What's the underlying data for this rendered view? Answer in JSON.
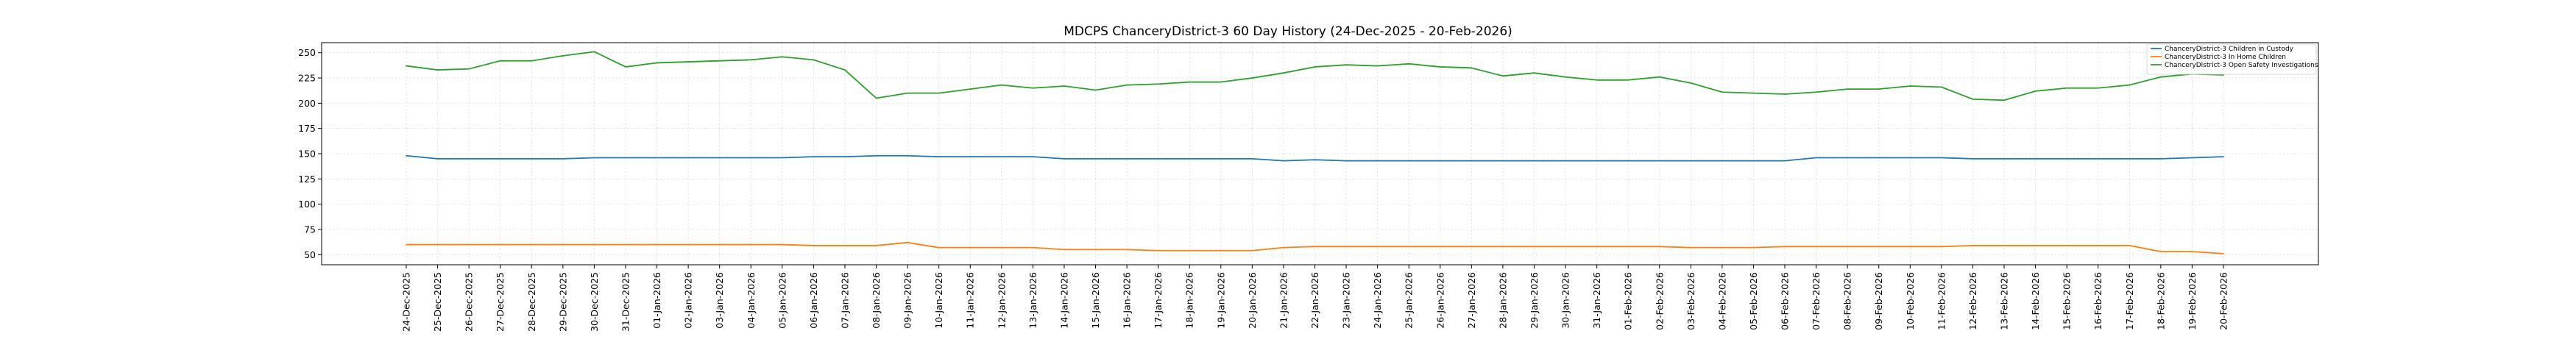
{
  "chart_data": {
    "type": "line",
    "title": "MDCPS ChanceryDistrict-3 60 Day History (24-Dec-2025 - 20-Feb-2026)",
    "xlabel": "",
    "ylabel": "",
    "ylim": [
      40,
      260
    ],
    "yticks": [
      50,
      75,
      100,
      125,
      150,
      175,
      200,
      225,
      250
    ],
    "grid": true,
    "legend_position": "top-right",
    "x": [
      "24-Dec-2025",
      "25-Dec-2025",
      "26-Dec-2025",
      "27-Dec-2025",
      "28-Dec-2025",
      "29-Dec-2025",
      "30-Dec-2025",
      "31-Dec-2025",
      "01-Jan-2026",
      "02-Jan-2026",
      "03-Jan-2026",
      "04-Jan-2026",
      "05-Jan-2026",
      "06-Jan-2026",
      "07-Jan-2026",
      "08-Jan-2026",
      "09-Jan-2026",
      "10-Jan-2026",
      "11-Jan-2026",
      "12-Jan-2026",
      "13-Jan-2026",
      "14-Jan-2026",
      "15-Jan-2026",
      "16-Jan-2026",
      "17-Jan-2026",
      "18-Jan-2026",
      "19-Jan-2026",
      "20-Jan-2026",
      "21-Jan-2026",
      "22-Jan-2026",
      "23-Jan-2026",
      "24-Jan-2026",
      "25-Jan-2026",
      "26-Jan-2026",
      "27-Jan-2026",
      "28-Jan-2026",
      "29-Jan-2026",
      "30-Jan-2026",
      "31-Jan-2026",
      "01-Feb-2026",
      "02-Feb-2026",
      "03-Feb-2026",
      "04-Feb-2026",
      "05-Feb-2026",
      "06-Feb-2026",
      "07-Feb-2026",
      "08-Feb-2026",
      "09-Feb-2026",
      "10-Feb-2026",
      "11-Feb-2026",
      "12-Feb-2026",
      "13-Feb-2026",
      "14-Feb-2026",
      "15-Feb-2026",
      "16-Feb-2026",
      "17-Feb-2026",
      "18-Feb-2026",
      "19-Feb-2026",
      "20-Feb-2026"
    ],
    "series": [
      {
        "name": "ChanceryDistrict-3 Children in Custody",
        "color": "#1f77b4",
        "values": [
          148,
          145,
          145,
          145,
          145,
          145,
          146,
          146,
          146,
          146,
          146,
          146,
          146,
          147,
          147,
          148,
          148,
          147,
          147,
          147,
          147,
          145,
          145,
          145,
          145,
          145,
          145,
          145,
          143,
          144,
          143,
          143,
          143,
          143,
          143,
          143,
          143,
          143,
          143,
          143,
          143,
          143,
          143,
          143,
          143,
          146,
          146,
          146,
          146,
          146,
          145,
          145,
          145,
          145,
          145,
          145,
          145,
          146,
          147
        ]
      },
      {
        "name": "ChanceryDistrict-3 In Home Children",
        "color": "#ff7f0e",
        "values": [
          60,
          60,
          60,
          60,
          60,
          60,
          60,
          60,
          60,
          60,
          60,
          60,
          60,
          59,
          59,
          59,
          62,
          57,
          57,
          57,
          57,
          55,
          55,
          55,
          54,
          54,
          54,
          54,
          57,
          58,
          58,
          58,
          58,
          58,
          58,
          58,
          58,
          58,
          58,
          58,
          58,
          57,
          57,
          57,
          58,
          58,
          58,
          58,
          58,
          58,
          59,
          59,
          59,
          59,
          59,
          59,
          53,
          53,
          51
        ]
      },
      {
        "name": "ChanceryDistrict-3 Open Safety Investigations",
        "color": "#2ca02c",
        "values": [
          237,
          233,
          234,
          242,
          242,
          247,
          251,
          236,
          240,
          241,
          242,
          243,
          246,
          243,
          233,
          205,
          210,
          210,
          214,
          218,
          215,
          217,
          213,
          218,
          219,
          221,
          221,
          225,
          230,
          236,
          238,
          237,
          239,
          236,
          235,
          227,
          230,
          226,
          223,
          223,
          226,
          220,
          211,
          210,
          209,
          211,
          214,
          214,
          217,
          216,
          204,
          203,
          212,
          215,
          215,
          218,
          226,
          229,
          228
        ]
      }
    ]
  }
}
